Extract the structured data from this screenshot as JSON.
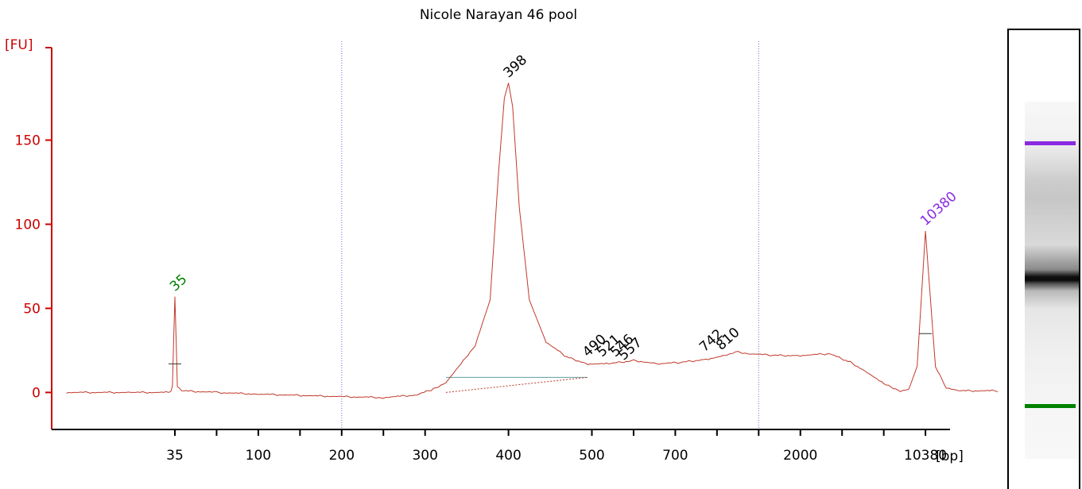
{
  "chart_data": {
    "type": "line",
    "title": "Nicole Narayan 46 pool",
    "ylabel": "[FU]",
    "xlabel": "[bp]",
    "ylim": [
      -22,
      205
    ],
    "yticks": [
      0,
      50,
      100,
      150
    ],
    "xticks": [
      {
        "label": "35",
        "pos": 0
      },
      {
        "label": "",
        "pos": 0.5
      },
      {
        "label": "100",
        "pos": 1
      },
      {
        "label": "",
        "pos": 1.5
      },
      {
        "label": "200",
        "pos": 2
      },
      {
        "label": "",
        "pos": 2.5
      },
      {
        "label": "300",
        "pos": 3
      },
      {
        "label": "400",
        "pos": 4
      },
      {
        "label": "500",
        "pos": 5
      },
      {
        "label": "",
        "pos": 5.5
      },
      {
        "label": "700",
        "pos": 6
      },
      {
        "label": "",
        "pos": 6.5
      },
      {
        "label": "",
        "pos": 7
      },
      {
        "label": "2000",
        "pos": 7.5
      },
      {
        "label": "",
        "pos": 8
      },
      {
        "label": "",
        "pos": 8.5
      },
      {
        "label": "10380",
        "pos": 9
      }
    ],
    "xrange": [
      -1.3,
      10.6
    ],
    "dotted_lines_pos": [
      2,
      7
    ],
    "colors": {
      "trace": "#c0392b",
      "axis": "#cc0000",
      "lower_marker": "#008000",
      "upper_marker": "#8a2be2",
      "baseline": "#5f9ea0"
    },
    "series": [
      {
        "points": [
          [
            -1.3,
            0
          ],
          [
            -0.5,
            0
          ],
          [
            -0.05,
            0
          ],
          [
            -0.03,
            4
          ],
          [
            0,
            57
          ],
          [
            0.03,
            4
          ],
          [
            0.08,
            1
          ],
          [
            0.5,
            0
          ],
          [
            1.0,
            -1
          ],
          [
            2.0,
            -2.5
          ],
          [
            2.5,
            -3
          ],
          [
            2.9,
            -1.5
          ],
          [
            3.1,
            2
          ],
          [
            3.25,
            6
          ],
          [
            3.4,
            15
          ],
          [
            3.6,
            28
          ],
          [
            3.78,
            55
          ],
          [
            3.88,
            130
          ],
          [
            3.95,
            175
          ],
          [
            4.0,
            184
          ],
          [
            4.05,
            170
          ],
          [
            4.13,
            110
          ],
          [
            4.25,
            55
          ],
          [
            4.45,
            30
          ],
          [
            4.7,
            21
          ],
          [
            4.95,
            17
          ],
          [
            5.2,
            17
          ],
          [
            5.5,
            19
          ],
          [
            5.8,
            17
          ],
          [
            6.1,
            18
          ],
          [
            6.4,
            20
          ],
          [
            6.6,
            22
          ],
          [
            6.75,
            24
          ],
          [
            6.9,
            23
          ],
          [
            7.2,
            22
          ],
          [
            7.5,
            22
          ],
          [
            7.85,
            23
          ],
          [
            8.1,
            18
          ],
          [
            8.3,
            12
          ],
          [
            8.5,
            5
          ],
          [
            8.7,
            1
          ],
          [
            8.8,
            2
          ],
          [
            8.9,
            15
          ],
          [
            9.0,
            96
          ],
          [
            9.12,
            15
          ],
          [
            9.25,
            3
          ],
          [
            9.4,
            1
          ],
          [
            9.8,
            1
          ],
          [
            10.3,
            1
          ],
          [
            10.6,
            2
          ]
        ]
      }
    ],
    "peak_labels": [
      {
        "text": "35",
        "x": 0,
        "y": 57,
        "color": "green"
      },
      {
        "text": "398",
        "x": 4.0,
        "y": 184,
        "color": "black"
      },
      {
        "text": "490",
        "x": 4.95,
        "y": 18,
        "color": "black"
      },
      {
        "text": "521",
        "x": 5.12,
        "y": 18,
        "color": "black"
      },
      {
        "text": "546",
        "x": 5.28,
        "y": 18,
        "color": "black"
      },
      {
        "text": "557",
        "x": 5.38,
        "y": 16,
        "color": "black"
      },
      {
        "text": "742",
        "x": 6.35,
        "y": 21,
        "color": "black"
      },
      {
        "text": "810",
        "x": 6.55,
        "y": 22,
        "color": "black"
      },
      {
        "text": "10380",
        "x": 9.0,
        "y": 96,
        "color": "purple"
      }
    ],
    "baseline_segment": {
      "x": [
        3.25,
        4.95
      ],
      "y": 9
    },
    "gel": {
      "upper_marker": "purple",
      "lower_marker": "green"
    }
  }
}
